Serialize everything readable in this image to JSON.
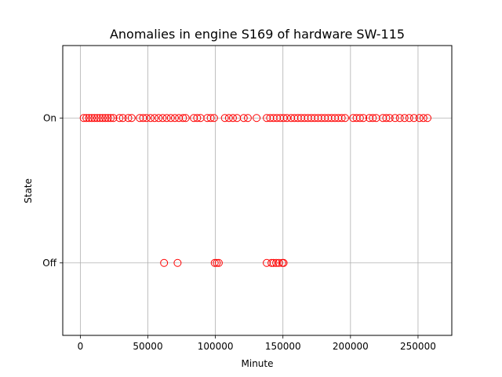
{
  "chart_data": {
    "type": "scatter",
    "title": "Anomalies in engine S169 of hardware SW-115",
    "xlabel": "Minute",
    "ylabel": "State",
    "xlim": [
      -13000,
      275000
    ],
    "ylim": [
      -0.5,
      1.5
    ],
    "x_ticks": [
      0,
      50000,
      100000,
      150000,
      200000,
      250000
    ],
    "x_tick_labels": [
      "0",
      "50000",
      "100000",
      "150000",
      "200000",
      "250000"
    ],
    "y_ticks": [
      0,
      1
    ],
    "y_tick_labels": [
      "Off",
      "On"
    ],
    "grid": true,
    "marker": "open-circle",
    "marker_color": "#ff0000",
    "series": [
      {
        "values": [
          {
            "x": 2500,
            "y": 1
          },
          {
            "x": 4500,
            "y": 1
          },
          {
            "x": 6500,
            "y": 1
          },
          {
            "x": 8500,
            "y": 1
          },
          {
            "x": 10500,
            "y": 1
          },
          {
            "x": 12500,
            "y": 1
          },
          {
            "x": 14500,
            "y": 1
          },
          {
            "x": 16500,
            "y": 1
          },
          {
            "x": 18500,
            "y": 1
          },
          {
            "x": 20500,
            "y": 1
          },
          {
            "x": 22500,
            "y": 1
          },
          {
            "x": 24500,
            "y": 1
          },
          {
            "x": 29000,
            "y": 1
          },
          {
            "x": 31500,
            "y": 1
          },
          {
            "x": 35500,
            "y": 1
          },
          {
            "x": 38000,
            "y": 1
          },
          {
            "x": 44000,
            "y": 1
          },
          {
            "x": 46500,
            "y": 1
          },
          {
            "x": 49000,
            "y": 1
          },
          {
            "x": 52000,
            "y": 1
          },
          {
            "x": 55000,
            "y": 1
          },
          {
            "x": 58000,
            "y": 1
          },
          {
            "x": 61000,
            "y": 1
          },
          {
            "x": 64000,
            "y": 1
          },
          {
            "x": 67000,
            "y": 1
          },
          {
            "x": 70000,
            "y": 1
          },
          {
            "x": 73000,
            "y": 1
          },
          {
            "x": 76000,
            "y": 1
          },
          {
            "x": 78000,
            "y": 1
          },
          {
            "x": 84000,
            "y": 1
          },
          {
            "x": 86500,
            "y": 1
          },
          {
            "x": 89000,
            "y": 1
          },
          {
            "x": 94000,
            "y": 1
          },
          {
            "x": 96500,
            "y": 1
          },
          {
            "x": 99000,
            "y": 1
          },
          {
            "x": 107000,
            "y": 1
          },
          {
            "x": 110000,
            "y": 1
          },
          {
            "x": 113000,
            "y": 1
          },
          {
            "x": 116000,
            "y": 1
          },
          {
            "x": 121000,
            "y": 1
          },
          {
            "x": 124000,
            "y": 1
          },
          {
            "x": 130500,
            "y": 1
          },
          {
            "x": 138000,
            "y": 1
          },
          {
            "x": 140500,
            "y": 1
          },
          {
            "x": 143000,
            "y": 1
          },
          {
            "x": 145500,
            "y": 1
          },
          {
            "x": 148000,
            "y": 1
          },
          {
            "x": 150500,
            "y": 1
          },
          {
            "x": 153000,
            "y": 1
          },
          {
            "x": 156000,
            "y": 1
          },
          {
            "x": 158500,
            "y": 1
          },
          {
            "x": 161000,
            "y": 1
          },
          {
            "x": 163500,
            "y": 1
          },
          {
            "x": 166000,
            "y": 1
          },
          {
            "x": 168500,
            "y": 1
          },
          {
            "x": 171000,
            "y": 1
          },
          {
            "x": 173500,
            "y": 1
          },
          {
            "x": 176000,
            "y": 1
          },
          {
            "x": 178500,
            "y": 1
          },
          {
            "x": 181000,
            "y": 1
          },
          {
            "x": 183500,
            "y": 1
          },
          {
            "x": 186000,
            "y": 1
          },
          {
            "x": 188500,
            "y": 1
          },
          {
            "x": 191000,
            "y": 1
          },
          {
            "x": 193500,
            "y": 1
          },
          {
            "x": 196000,
            "y": 1
          },
          {
            "x": 202000,
            "y": 1
          },
          {
            "x": 204500,
            "y": 1
          },
          {
            "x": 207000,
            "y": 1
          },
          {
            "x": 209500,
            "y": 1
          },
          {
            "x": 214000,
            "y": 1
          },
          {
            "x": 216500,
            "y": 1
          },
          {
            "x": 219000,
            "y": 1
          },
          {
            "x": 224000,
            "y": 1
          },
          {
            "x": 226500,
            "y": 1
          },
          {
            "x": 229000,
            "y": 1
          },
          {
            "x": 233000,
            "y": 1
          },
          {
            "x": 236500,
            "y": 1
          },
          {
            "x": 240000,
            "y": 1
          },
          {
            "x": 243500,
            "y": 1
          },
          {
            "x": 247000,
            "y": 1
          },
          {
            "x": 251000,
            "y": 1
          },
          {
            "x": 254000,
            "y": 1
          },
          {
            "x": 257000,
            "y": 1
          },
          {
            "x": 62000,
            "y": 0
          },
          {
            "x": 72000,
            "y": 0
          },
          {
            "x": 99500,
            "y": 0
          },
          {
            "x": 101000,
            "y": 0
          },
          {
            "x": 102500,
            "y": 0
          },
          {
            "x": 138000,
            "y": 0
          },
          {
            "x": 141500,
            "y": 0
          },
          {
            "x": 143000,
            "y": 0
          },
          {
            "x": 145000,
            "y": 0
          },
          {
            "x": 147000,
            "y": 0
          },
          {
            "x": 149500,
            "y": 0
          },
          {
            "x": 150500,
            "y": 0
          }
        ]
      }
    ]
  }
}
